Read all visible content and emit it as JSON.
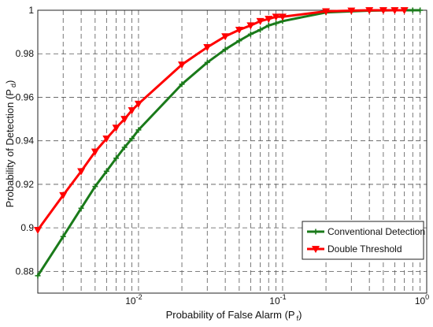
{
  "chart_data": {
    "type": "line",
    "title": "",
    "xlabel": "Probability of False Alarm (P f)",
    "xlabel_main": "Probability of False Alarm (P",
    "xlabel_sub": "f",
    "xlabel_close": ")",
    "ylabel": "Probability of Detection (P d)",
    "ylabel_main": "Probability of Detection (P",
    "ylabel_sub": "d",
    "ylabel_close": ")",
    "xscale": "log",
    "xlim": [
      0.002,
      1
    ],
    "ylim": [
      0.87,
      1
    ],
    "grid": true,
    "legend_position": "bottom-right",
    "x_ticks": [
      {
        "value": 0.01,
        "base": "10",
        "exp": "-2"
      },
      {
        "value": 0.1,
        "base": "10",
        "exp": "-1"
      },
      {
        "value": 1,
        "base": "10",
        "exp": "0"
      }
    ],
    "y_ticks": [
      {
        "value": 0.88,
        "label": "0.88"
      },
      {
        "value": 0.9,
        "label": "0.9"
      },
      {
        "value": 0.92,
        "label": "0.92"
      },
      {
        "value": 0.94,
        "label": "0.94"
      },
      {
        "value": 0.96,
        "label": "0.96"
      },
      {
        "value": 0.98,
        "label": "0.98"
      },
      {
        "value": 1,
        "label": "1"
      }
    ],
    "series": [
      {
        "name": "Conventional Detection",
        "color": "#1a7a1a",
        "marker": "plus",
        "x": [
          0.002,
          0.003,
          0.004,
          0.005,
          0.006,
          0.007,
          0.008,
          0.009,
          0.01,
          0.02,
          0.03,
          0.04,
          0.05,
          0.06,
          0.07,
          0.08,
          0.09,
          0.1,
          0.2,
          0.3,
          0.4,
          0.5,
          0.6,
          0.7,
          0.8,
          0.9
        ],
        "values": [
          0.878,
          0.896,
          0.909,
          0.919,
          0.926,
          0.932,
          0.937,
          0.941,
          0.945,
          0.966,
          0.976,
          0.982,
          0.986,
          0.989,
          0.991,
          0.993,
          0.994,
          0.995,
          0.999,
          0.9995,
          0.9998,
          0.9999,
          1.0,
          1.0,
          1.0,
          1.0
        ]
      },
      {
        "name": "Double Threshold",
        "color": "#ff0000",
        "marker": "triangle-down",
        "x": [
          0.002,
          0.003,
          0.004,
          0.005,
          0.006,
          0.007,
          0.008,
          0.009,
          0.01,
          0.02,
          0.03,
          0.04,
          0.05,
          0.06,
          0.07,
          0.08,
          0.09,
          0.1,
          0.2,
          0.3,
          0.4,
          0.5,
          0.6,
          0.7
        ],
        "values": [
          0.899,
          0.915,
          0.926,
          0.935,
          0.941,
          0.946,
          0.95,
          0.954,
          0.957,
          0.975,
          0.983,
          0.988,
          0.991,
          0.993,
          0.995,
          0.996,
          0.997,
          0.997,
          0.9995,
          0.9998,
          1.0,
          1.0,
          1.0,
          1.0
        ]
      }
    ]
  }
}
